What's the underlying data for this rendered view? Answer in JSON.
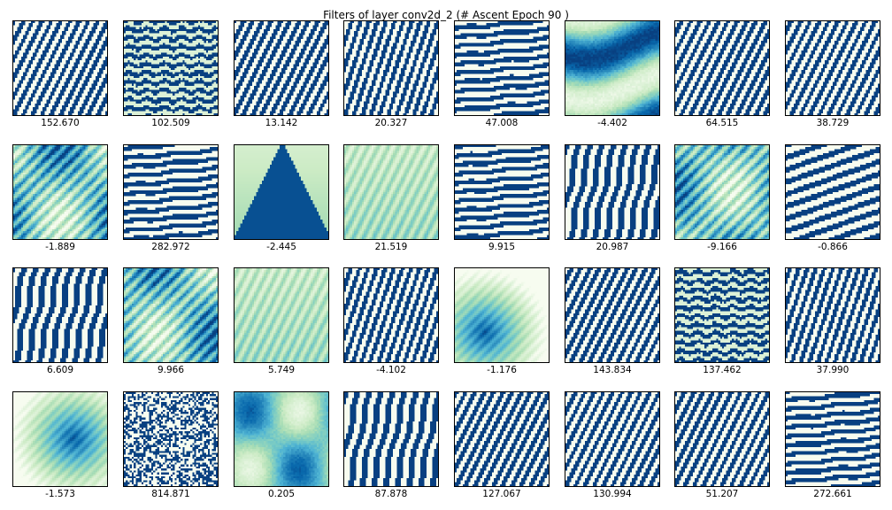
{
  "title": "Filters of layer conv2d_2 (# Ascent Epoch 90 )",
  "colors": {
    "dark": "#084081",
    "light": "#f7fcf0"
  },
  "filters": [
    {
      "value": "152.670",
      "pattern": "diag-stripes"
    },
    {
      "value": "102.509",
      "pattern": "horizontal-noise"
    },
    {
      "value": "13.142",
      "pattern": "diag-stripes"
    },
    {
      "value": "20.327",
      "pattern": "diag-stripes-steep"
    },
    {
      "value": "47.008",
      "pattern": "horizontal-stripes"
    },
    {
      "value": "-4.402",
      "pattern": "smooth-bands"
    },
    {
      "value": "64.515",
      "pattern": "diag-stripes"
    },
    {
      "value": "38.729",
      "pattern": "diag-stripes"
    },
    {
      "value": "-1.889",
      "pattern": "smooth-blob"
    },
    {
      "value": "282.972",
      "pattern": "horizontal-stripes"
    },
    {
      "value": "-2.445",
      "pattern": "smooth-arch"
    },
    {
      "value": "21.519",
      "pattern": "smooth-light"
    },
    {
      "value": "9.915",
      "pattern": "horizontal-stripes"
    },
    {
      "value": "20.987",
      "pattern": "vertical-stripes"
    },
    {
      "value": "-9.166",
      "pattern": "smooth-blob"
    },
    {
      "value": "-0.866",
      "pattern": "diag-stripes-shallow"
    },
    {
      "value": "6.609",
      "pattern": "vertical-stripes"
    },
    {
      "value": "9.966",
      "pattern": "smooth-blob"
    },
    {
      "value": "5.749",
      "pattern": "smooth-light"
    },
    {
      "value": "-4.102",
      "pattern": "diag-stripes-steep"
    },
    {
      "value": "-1.176",
      "pattern": "smooth-center"
    },
    {
      "value": "143.834",
      "pattern": "diag-stripes"
    },
    {
      "value": "137.462",
      "pattern": "horizontal-noise"
    },
    {
      "value": "37.990",
      "pattern": "diag-stripes-steep"
    },
    {
      "value": "-1.573",
      "pattern": "smooth-center"
    },
    {
      "value": "814.871",
      "pattern": "noise"
    },
    {
      "value": "0.205",
      "pattern": "smooth-patches"
    },
    {
      "value": "87.878",
      "pattern": "vertical-stripes"
    },
    {
      "value": "127.067",
      "pattern": "diag-stripes"
    },
    {
      "value": "130.994",
      "pattern": "diag-stripes"
    },
    {
      "value": "51.207",
      "pattern": "diag-stripes"
    },
    {
      "value": "272.661",
      "pattern": "horizontal-stripes"
    }
  ]
}
